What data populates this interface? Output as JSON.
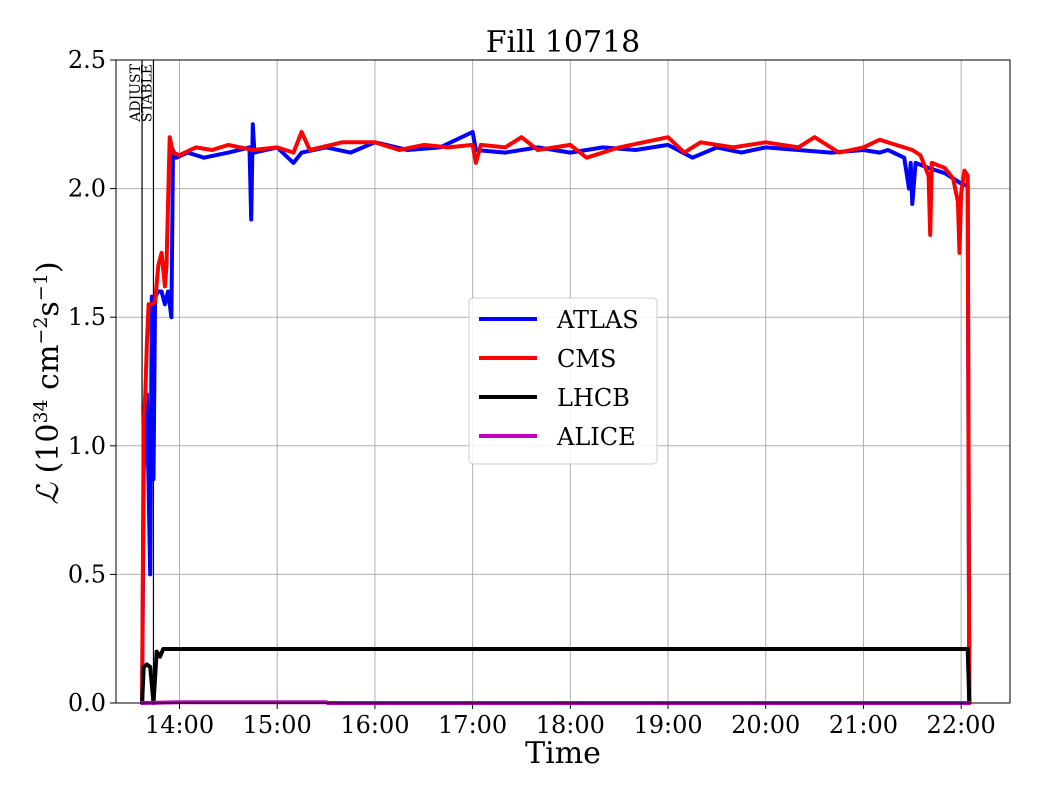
{
  "chart_data": {
    "type": "line",
    "title": "Fill 10718",
    "xlabel": "Time",
    "ylabel_symbol": "ℒ",
    "ylabel_unit_prefix": " (10",
    "ylabel_unit_exp1": "34",
    "ylabel_unit_mid": " cm",
    "ylabel_unit_exp2": "−2",
    "ylabel_unit_s": "s",
    "ylabel_unit_exp3": "−1",
    "ylabel_unit_close": ")",
    "xlim": [
      "13:21",
      "22:30"
    ],
    "ylim": [
      0.0,
      2.5
    ],
    "x_ticks": [
      "14:00",
      "15:00",
      "16:00",
      "17:00",
      "18:00",
      "19:00",
      "20:00",
      "21:00",
      "22:00"
    ],
    "y_ticks": [
      "0.0",
      "0.5",
      "1.0",
      "1.5",
      "2.0",
      "2.5"
    ],
    "grid": true,
    "legend_position": "center",
    "beam_mode_markers": [
      {
        "label": "ADJUST",
        "time": "13:37"
      },
      {
        "label": "STABLE",
        "time": "13:44"
      }
    ],
    "series": [
      {
        "name": "ATLAS",
        "color": "#0000ff",
        "points": [
          [
            "13:37",
            0.0
          ],
          [
            "13:38",
            0.9
          ],
          [
            "13:40",
            1.2
          ],
          [
            "13:42",
            0.5
          ],
          [
            "13:43",
            1.58
          ],
          [
            "13:44",
            0.87
          ],
          [
            "13:45",
            1.58
          ],
          [
            "13:47",
            1.6
          ],
          [
            "13:49",
            1.6
          ],
          [
            "13:51",
            1.55
          ],
          [
            "13:53",
            1.6
          ],
          [
            "13:55",
            1.5
          ],
          [
            "13:56",
            2.15
          ],
          [
            "13:58",
            2.12
          ],
          [
            "14:05",
            2.14
          ],
          [
            "14:15",
            2.12
          ],
          [
            "14:30",
            2.14
          ],
          [
            "14:43",
            2.16
          ],
          [
            "14:44",
            1.88
          ],
          [
            "14:45",
            2.25
          ],
          [
            "14:46",
            2.14
          ],
          [
            "15:00",
            2.16
          ],
          [
            "15:10",
            2.1
          ],
          [
            "15:15",
            2.14
          ],
          [
            "15:30",
            2.16
          ],
          [
            "15:45",
            2.14
          ],
          [
            "16:00",
            2.18
          ],
          [
            "16:20",
            2.15
          ],
          [
            "16:40",
            2.16
          ],
          [
            "17:00",
            2.22
          ],
          [
            "17:02",
            2.15
          ],
          [
            "17:20",
            2.14
          ],
          [
            "17:40",
            2.16
          ],
          [
            "18:00",
            2.14
          ],
          [
            "18:20",
            2.16
          ],
          [
            "18:40",
            2.15
          ],
          [
            "19:00",
            2.17
          ],
          [
            "19:15",
            2.12
          ],
          [
            "19:30",
            2.16
          ],
          [
            "19:45",
            2.14
          ],
          [
            "20:00",
            2.16
          ],
          [
            "20:20",
            2.15
          ],
          [
            "20:40",
            2.14
          ],
          [
            "21:00",
            2.15
          ],
          [
            "21:10",
            2.14
          ],
          [
            "21:15",
            2.15
          ],
          [
            "21:25",
            2.12
          ],
          [
            "21:28",
            2.0
          ],
          [
            "21:29",
            2.1
          ],
          [
            "21:30",
            1.94
          ],
          [
            "21:32",
            2.1
          ],
          [
            "21:40",
            2.08
          ],
          [
            "21:50",
            2.06
          ],
          [
            "22:00",
            2.02
          ],
          [
            "22:04",
            2.01
          ],
          [
            "22:05",
            0.0
          ]
        ]
      },
      {
        "name": "CMS",
        "color": "#ff0000",
        "points": [
          [
            "13:37",
            0.0
          ],
          [
            "13:38",
            1.1
          ],
          [
            "13:39",
            1.2
          ],
          [
            "13:40",
            1.4
          ],
          [
            "13:41",
            1.55
          ],
          [
            "13:43",
            1.55
          ],
          [
            "13:45",
            1.56
          ],
          [
            "13:47",
            1.7
          ],
          [
            "13:49",
            1.75
          ],
          [
            "13:51",
            1.62
          ],
          [
            "13:52",
            1.7
          ],
          [
            "13:54",
            2.2
          ],
          [
            "13:56",
            2.14
          ],
          [
            "14:00",
            2.13
          ],
          [
            "14:10",
            2.16
          ],
          [
            "14:20",
            2.15
          ],
          [
            "14:30",
            2.17
          ],
          [
            "14:45",
            2.15
          ],
          [
            "15:00",
            2.16
          ],
          [
            "15:10",
            2.14
          ],
          [
            "15:15",
            2.22
          ],
          [
            "15:20",
            2.15
          ],
          [
            "15:40",
            2.18
          ],
          [
            "16:00",
            2.18
          ],
          [
            "16:15",
            2.15
          ],
          [
            "16:30",
            2.17
          ],
          [
            "16:45",
            2.16
          ],
          [
            "17:00",
            2.17
          ],
          [
            "17:02",
            2.1
          ],
          [
            "17:05",
            2.17
          ],
          [
            "17:20",
            2.16
          ],
          [
            "17:30",
            2.2
          ],
          [
            "17:40",
            2.15
          ],
          [
            "18:00",
            2.17
          ],
          [
            "18:10",
            2.12
          ],
          [
            "18:30",
            2.16
          ],
          [
            "18:45",
            2.18
          ],
          [
            "19:00",
            2.2
          ],
          [
            "19:10",
            2.14
          ],
          [
            "19:20",
            2.18
          ],
          [
            "19:40",
            2.16
          ],
          [
            "20:00",
            2.18
          ],
          [
            "20:20",
            2.16
          ],
          [
            "20:30",
            2.2
          ],
          [
            "20:45",
            2.14
          ],
          [
            "21:00",
            2.16
          ],
          [
            "21:10",
            2.19
          ],
          [
            "21:20",
            2.17
          ],
          [
            "21:30",
            2.15
          ],
          [
            "21:35",
            2.13
          ],
          [
            "21:40",
            2.05
          ],
          [
            "21:41",
            1.82
          ],
          [
            "21:42",
            2.1
          ],
          [
            "21:50",
            2.08
          ],
          [
            "21:55",
            2.04
          ],
          [
            "21:58",
            1.95
          ],
          [
            "21:59",
            1.75
          ],
          [
            "22:00",
            1.98
          ],
          [
            "22:02",
            2.07
          ],
          [
            "22:04",
            2.05
          ],
          [
            "22:05",
            0.0
          ]
        ]
      },
      {
        "name": "LHCB",
        "color": "#000000",
        "points": [
          [
            "13:37",
            0.0
          ],
          [
            "13:38",
            0.14
          ],
          [
            "13:40",
            0.15
          ],
          [
            "13:42",
            0.14
          ],
          [
            "13:44",
            0.0
          ],
          [
            "13:46",
            0.2
          ],
          [
            "13:48",
            0.18
          ],
          [
            "13:50",
            0.21
          ],
          [
            "14:00",
            0.21
          ],
          [
            "14:30",
            0.21
          ],
          [
            "15:00",
            0.21
          ],
          [
            "16:00",
            0.21
          ],
          [
            "17:00",
            0.21
          ],
          [
            "18:00",
            0.21
          ],
          [
            "19:00",
            0.21
          ],
          [
            "20:00",
            0.21
          ],
          [
            "21:00",
            0.21
          ],
          [
            "22:00",
            0.21
          ],
          [
            "22:04",
            0.21
          ],
          [
            "22:05",
            0.0
          ]
        ]
      },
      {
        "name": "ALICE",
        "color": "#bf00bf",
        "points": [
          [
            "13:37",
            0.0
          ],
          [
            "14:00",
            0.003
          ],
          [
            "15:00",
            0.003
          ],
          [
            "15:30",
            0.003
          ],
          [
            "15:31",
            0.0
          ],
          [
            "22:05",
            0.0
          ]
        ]
      }
    ]
  }
}
